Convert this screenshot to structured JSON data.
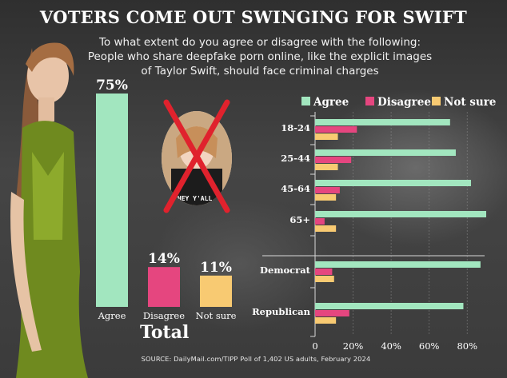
{
  "title": "VOTERS COME OUT SWINGING FOR SWIFT",
  "subtitle_lines": [
    "To what extent do you agree or disagree with the following:",
    "People who share deepfake porn online, like the explicit images",
    "of Taylor Swift, should face criminal charges"
  ],
  "thumbnail_caption": "HEY Y'ALL,",
  "source": "SOURCE: DailyMail.com/TIPP Poll of 1,402 US adults, February 2024",
  "colors": {
    "agree": "#a2e6bf",
    "disagree": "#e5467f",
    "not_sure": "#f8ca72",
    "text": "#ffffff",
    "cross": "#e0222d"
  },
  "chart_data": [
    {
      "type": "bar",
      "orientation": "vertical",
      "title": "Total",
      "categories": [
        "Agree",
        "Disagree",
        "Not sure"
      ],
      "values": [
        75,
        14,
        11
      ],
      "value_labels": [
        "75%",
        "14%",
        "11%"
      ],
      "ylim": [
        0,
        75
      ],
      "grid": false
    },
    {
      "type": "bar",
      "orientation": "horizontal",
      "categories": [
        "18-24",
        "25-44",
        "45-64",
        "65+",
        "Democrat",
        "Republican"
      ],
      "series": [
        {
          "name": "Agree",
          "values": [
            71,
            74,
            82,
            90,
            87,
            78
          ]
        },
        {
          "name": "Disagree",
          "values": [
            22,
            19,
            13,
            5,
            9,
            18
          ]
        },
        {
          "name": "Not sure",
          "values": [
            12,
            12,
            11,
            11,
            10,
            11
          ]
        }
      ],
      "xlim": [
        0,
        90
      ],
      "x_ticks": [
        "0",
        "20%",
        "40%",
        "60%",
        "80%"
      ],
      "legend": "top",
      "grid": true
    }
  ]
}
